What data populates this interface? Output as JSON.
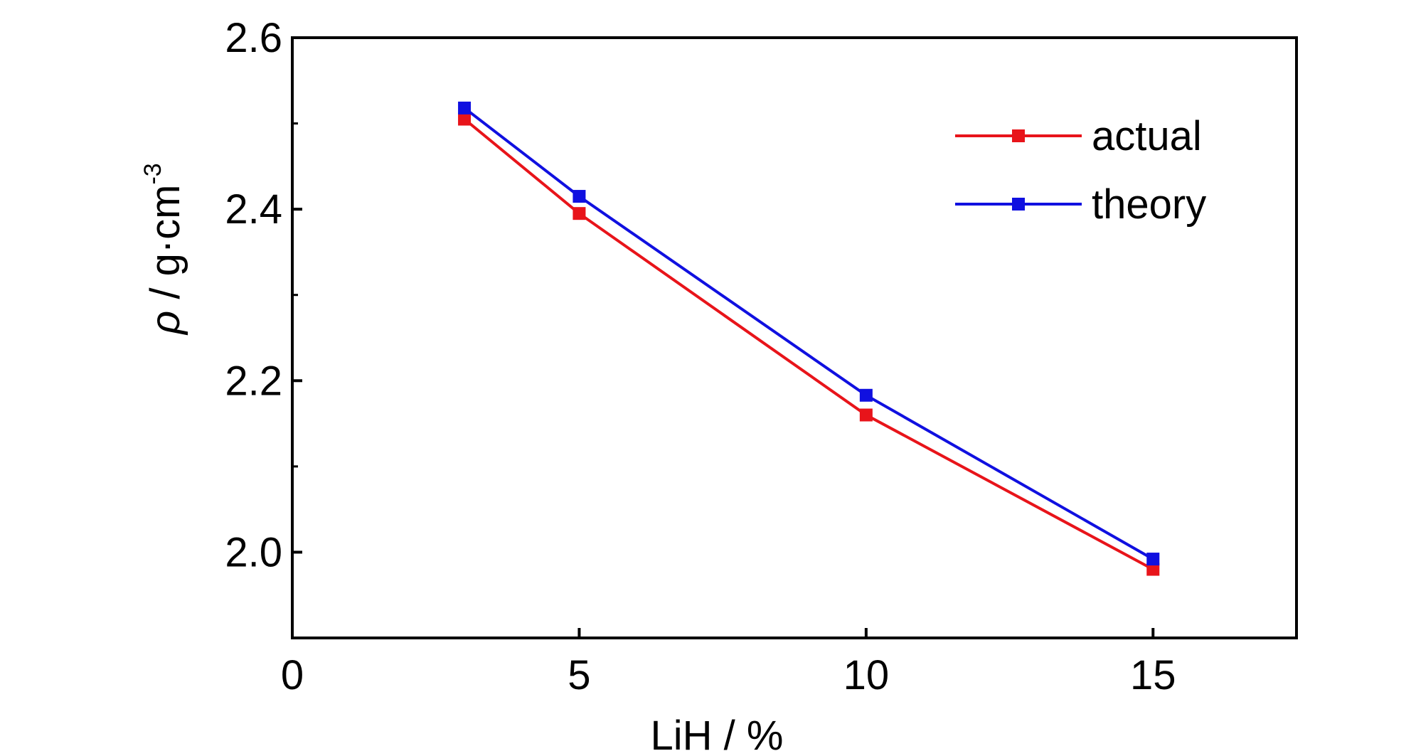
{
  "chart_data": {
    "type": "line",
    "xlabel": "LiH / %",
    "ylabel": {
      "symbol": "ρ",
      "unit": " / g·cm",
      "exponent": "-3"
    },
    "xlim": [
      0,
      17.5
    ],
    "ylim": [
      1.9,
      2.6
    ],
    "xticks": [
      0,
      5,
      10,
      15
    ],
    "xtick_labels": [
      "0",
      "5",
      "10",
      "15"
    ],
    "yticks": [
      2.0,
      2.2,
      2.4,
      2.6
    ],
    "ytick_labels": [
      "2.0",
      "2.2",
      "2.4",
      "2.6"
    ],
    "y_minor_ticks": [
      2.1,
      2.3,
      2.5
    ],
    "grid": false,
    "legend_position": "top-right",
    "series": [
      {
        "name": "actual",
        "color": "#e8141a",
        "marker": "square",
        "x": [
          3,
          5,
          10,
          15
        ],
        "y": [
          2.505,
          2.395,
          2.16,
          1.98
        ]
      },
      {
        "name": "theory",
        "color": "#1010e0",
        "marker": "square",
        "x": [
          3,
          5,
          10,
          15
        ],
        "y": [
          2.518,
          2.415,
          2.183,
          1.992
        ]
      }
    ]
  }
}
